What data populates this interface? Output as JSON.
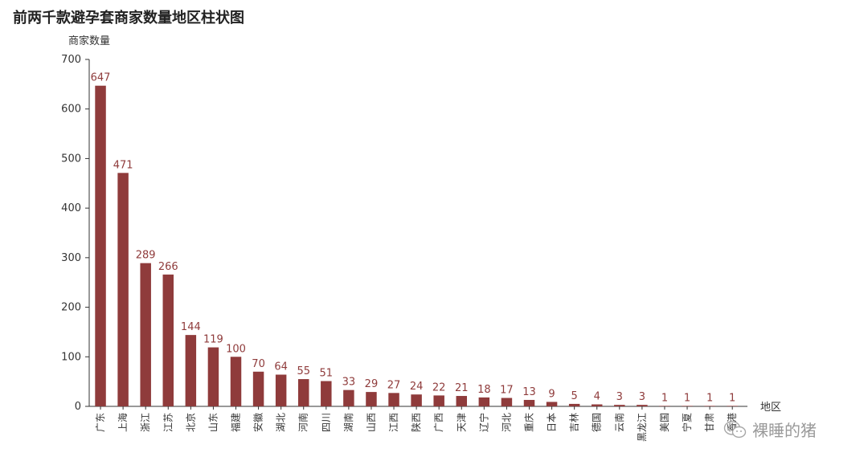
{
  "watermark": {
    "text": "裸睡的猪",
    "icon": "wechat-icon"
  },
  "chart_data": {
    "type": "bar",
    "title": "前两千款避孕套商家数量地区柱状图",
    "xlabel": "地区",
    "ylabel": "商家数量",
    "ylim": [
      0,
      700
    ],
    "yticks": [
      0,
      100,
      200,
      300,
      400,
      500,
      600,
      700
    ],
    "grid": false,
    "bar_color": "#8f3b3b",
    "label_color": "#8f3b3b",
    "categories": [
      "广东",
      "上海",
      "浙江",
      "江苏",
      "北京",
      "山东",
      "福建",
      "安徽",
      "湖北",
      "河南",
      "四川",
      "湖南",
      "山西",
      "江西",
      "陕西",
      "广西",
      "天津",
      "辽宁",
      "河北",
      "重庆",
      "日本",
      "吉林",
      "德国",
      "云南",
      "黑龙江",
      "美国",
      "宁夏",
      "甘肃",
      "香港"
    ],
    "values": [
      647,
      471,
      289,
      266,
      144,
      119,
      100,
      70,
      64,
      55,
      51,
      33,
      29,
      27,
      24,
      22,
      21,
      18,
      17,
      13,
      9,
      5,
      4,
      3,
      3,
      1,
      1,
      1,
      1
    ]
  }
}
